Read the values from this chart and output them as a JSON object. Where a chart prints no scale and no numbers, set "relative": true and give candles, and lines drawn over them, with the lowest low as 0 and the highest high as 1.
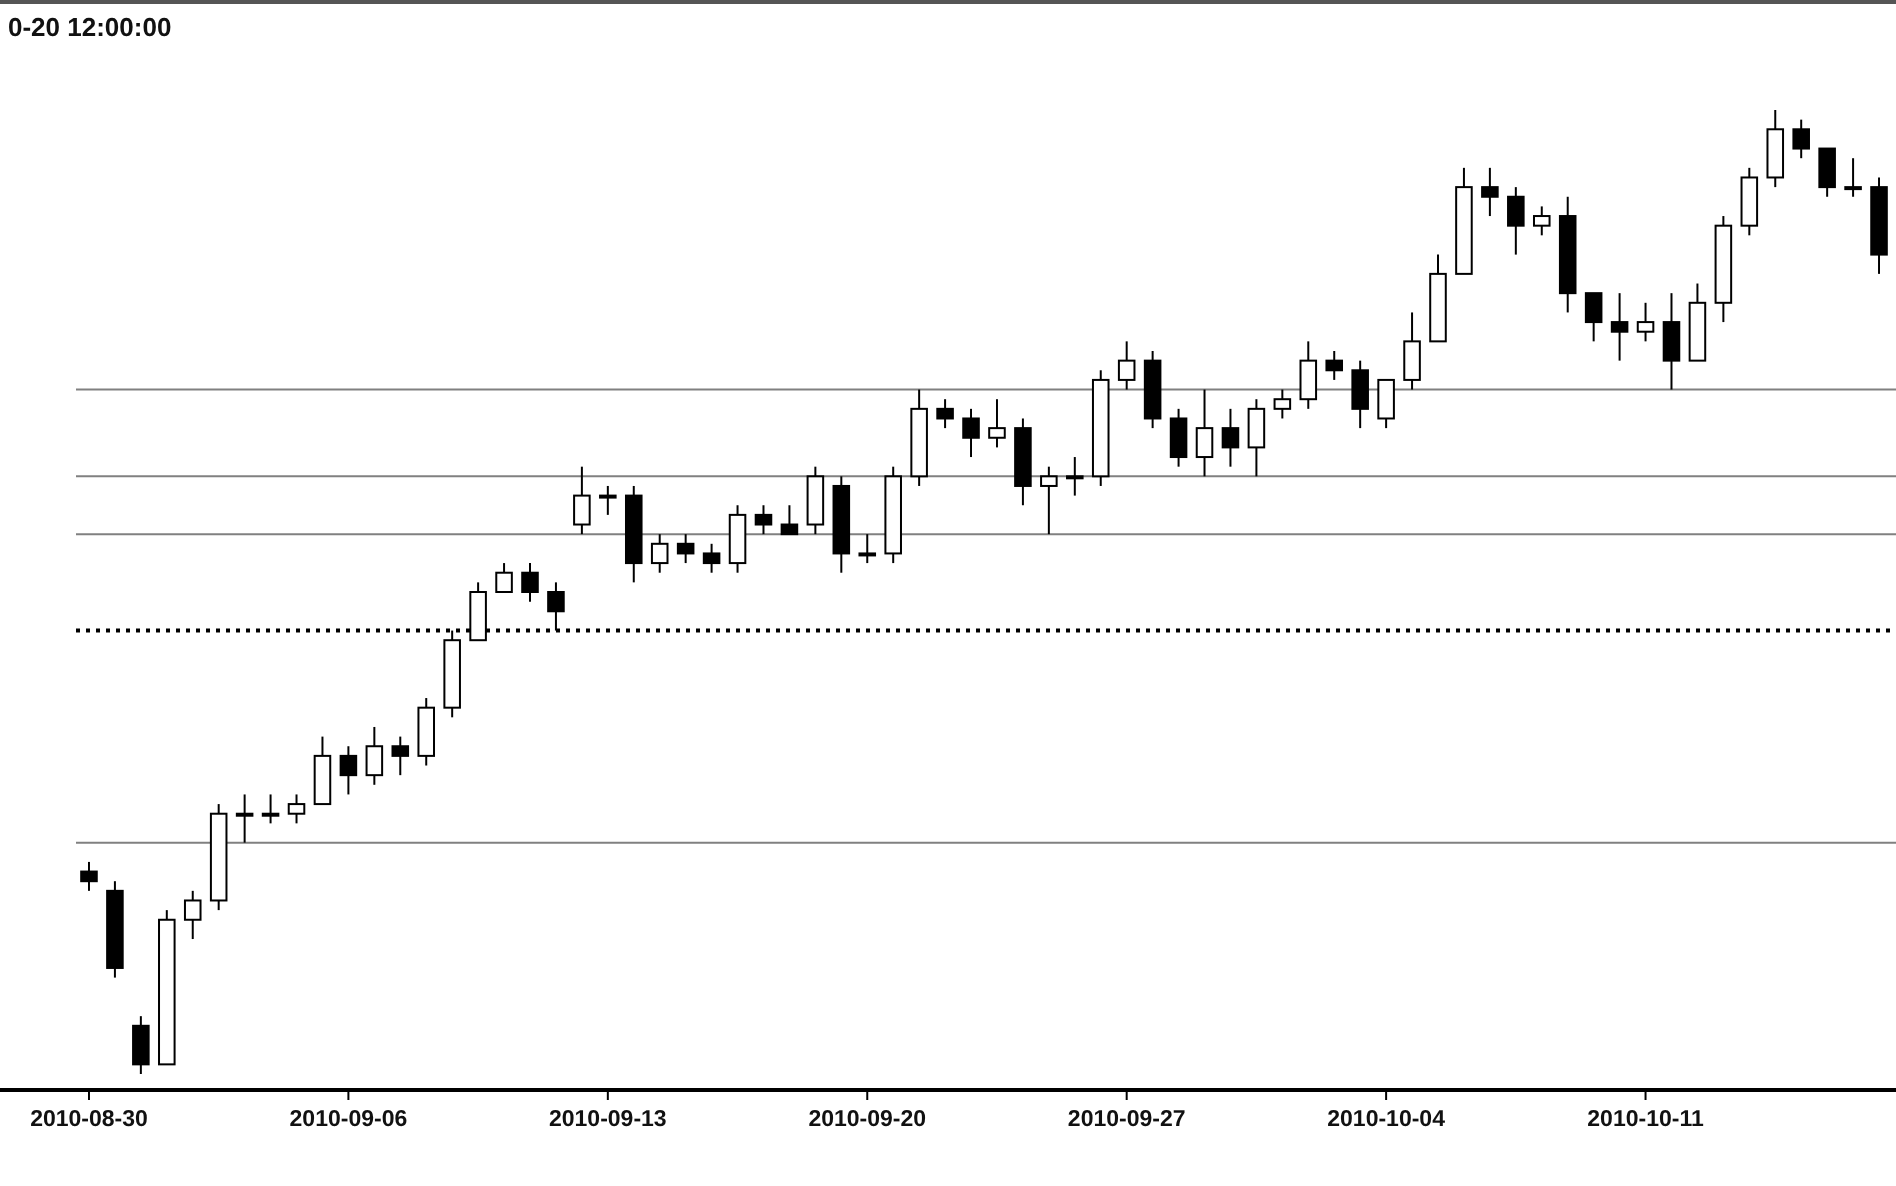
{
  "chart_data": {
    "type": "candlestick",
    "title": "0-20 12:00:00",
    "relative": true,
    "categories": [
      "2010-08-30",
      null,
      null,
      null,
      null,
      null,
      null,
      null,
      null,
      null,
      "2010-09-06",
      null,
      null,
      null,
      null,
      null,
      null,
      null,
      null,
      null,
      "2010-09-13",
      null,
      null,
      null,
      null,
      null,
      null,
      null,
      null,
      null,
      "2010-09-20",
      null,
      null,
      null,
      null,
      null,
      null,
      null,
      null,
      null,
      "2010-09-27",
      null,
      null,
      null,
      null,
      null,
      null,
      null,
      null,
      null,
      "2010-10-04",
      null,
      null,
      null,
      null,
      null,
      null,
      null,
      null,
      null,
      "2010-10-11",
      null,
      null,
      null,
      null,
      null,
      null,
      null,
      null,
      null
    ],
    "series": [
      {
        "color": "#000000",
        "ohlc": [
          [
            0.21,
            0.22,
            0.19,
            0.2
          ],
          [
            0.19,
            0.2,
            0.1,
            0.11
          ],
          [
            0.05,
            0.06,
            0,
            0.01
          ],
          [
            0.01,
            0.17,
            0.01,
            0.16
          ],
          [
            0.16,
            0.19,
            0.14,
            0.18
          ],
          [
            0.18,
            0.28,
            0.17,
            0.27
          ],
          [
            0.27,
            0.29,
            0.24,
            0.27
          ],
          [
            0.27,
            0.29,
            0.26,
            0.27
          ],
          [
            0.27,
            0.29,
            0.26,
            0.28
          ],
          [
            0.28,
            0.35,
            0.28,
            0.33
          ],
          [
            0.33,
            0.34,
            0.29,
            0.31
          ],
          [
            0.31,
            0.36,
            0.3,
            0.34
          ],
          [
            0.34,
            0.35,
            0.31,
            0.33
          ],
          [
            0.33,
            0.39,
            0.32,
            0.38
          ],
          [
            0.38,
            0.46,
            0.37,
            0.45
          ],
          [
            0.45,
            0.51,
            0.45,
            0.5
          ],
          [
            0.5,
            0.53,
            0.5,
            0.52
          ],
          [
            0.52,
            0.53,
            0.49,
            0.5
          ],
          [
            0.5,
            0.51,
            0.46,
            0.48
          ],
          [
            0.57,
            0.63,
            0.56,
            0.6
          ],
          [
            0.6,
            0.61,
            0.58,
            0.6
          ],
          [
            0.6,
            0.61,
            0.51,
            0.53
          ],
          [
            0.53,
            0.56,
            0.52,
            0.55
          ],
          [
            0.55,
            0.56,
            0.53,
            0.54
          ],
          [
            0.54,
            0.55,
            0.52,
            0.53
          ],
          [
            0.53,
            0.59,
            0.52,
            0.58
          ],
          [
            0.58,
            0.59,
            0.56,
            0.57
          ],
          [
            0.57,
            0.59,
            0.56,
            0.56
          ],
          [
            0.57,
            0.63,
            0.56,
            0.62
          ],
          [
            0.61,
            0.62,
            0.52,
            0.54
          ],
          [
            0.54,
            0.56,
            0.53,
            0.54
          ],
          [
            0.54,
            0.63,
            0.53,
            0.62
          ],
          [
            0.62,
            0.71,
            0.61,
            0.69
          ],
          [
            0.69,
            0.7,
            0.67,
            0.68
          ],
          [
            0.68,
            0.69,
            0.64,
            0.66
          ],
          [
            0.66,
            0.7,
            0.65,
            0.67
          ],
          [
            0.67,
            0.68,
            0.59,
            0.61
          ],
          [
            0.61,
            0.63,
            0.56,
            0.62
          ],
          [
            0.62,
            0.64,
            0.6,
            0.62
          ],
          [
            0.62,
            0.73,
            0.61,
            0.72
          ],
          [
            0.72,
            0.76,
            0.71,
            0.74
          ],
          [
            0.74,
            0.75,
            0.67,
            0.68
          ],
          [
            0.68,
            0.69,
            0.63,
            0.64
          ],
          [
            0.64,
            0.71,
            0.62,
            0.67
          ],
          [
            0.67,
            0.69,
            0.63,
            0.65
          ],
          [
            0.65,
            0.7,
            0.62,
            0.69
          ],
          [
            0.69,
            0.71,
            0.68,
            0.7
          ],
          [
            0.7,
            0.76,
            0.69,
            0.74
          ],
          [
            0.74,
            0.75,
            0.72,
            0.73
          ],
          [
            0.73,
            0.74,
            0.67,
            0.69
          ],
          [
            0.68,
            0.72,
            0.67,
            0.72
          ],
          [
            0.72,
            0.79,
            0.71,
            0.76
          ],
          [
            0.76,
            0.85,
            0.76,
            0.83
          ],
          [
            0.83,
            0.94,
            0.83,
            0.92
          ],
          [
            0.92,
            0.94,
            0.89,
            0.91
          ],
          [
            0.91,
            0.92,
            0.85,
            0.88
          ],
          [
            0.88,
            0.9,
            0.87,
            0.89
          ],
          [
            0.89,
            0.91,
            0.79,
            0.81
          ],
          [
            0.81,
            0.81,
            0.76,
            0.78
          ],
          [
            0.78,
            0.81,
            0.74,
            0.77
          ],
          [
            0.77,
            0.8,
            0.76,
            0.78
          ],
          [
            0.78,
            0.81,
            0.71,
            0.74
          ],
          [
            0.74,
            0.82,
            0.74,
            0.8
          ],
          [
            0.8,
            0.89,
            0.78,
            0.88
          ],
          [
            0.88,
            0.94,
            0.87,
            0.93
          ],
          [
            0.93,
            1,
            0.92,
            0.98
          ],
          [
            0.98,
            0.99,
            0.95,
            0.96
          ],
          [
            0.96,
            0.96,
            0.91,
            0.92
          ],
          [
            0.92,
            0.95,
            0.91,
            0.92
          ],
          [
            0.92,
            0.93,
            0.83,
            0.85
          ]
        ]
      }
    ],
    "ref_lines": [
      {
        "axis": "y",
        "value": 0.24,
        "color": "#808080",
        "line_style": "solid"
      },
      {
        "axis": "y",
        "value": 0.46,
        "color": "#000000",
        "line_style": "dotted"
      },
      {
        "axis": "y",
        "value": 0.56,
        "color": "#808080",
        "line_style": "solid"
      },
      {
        "axis": "y",
        "value": 0.62,
        "color": "#808080",
        "line_style": "solid"
      },
      {
        "axis": "y",
        "value": 0.71,
        "color": "#808080",
        "line_style": "solid"
      }
    ]
  }
}
